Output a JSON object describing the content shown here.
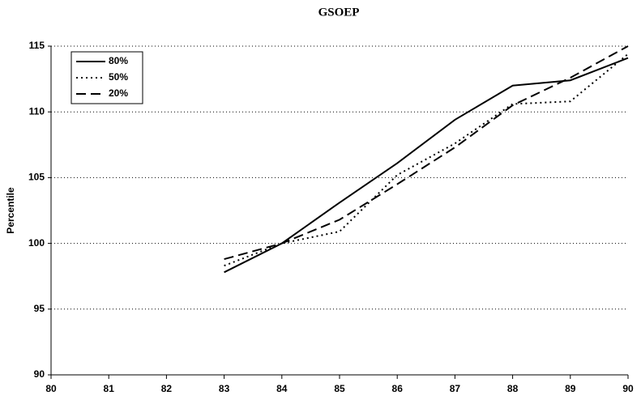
{
  "chart_data": {
    "type": "line",
    "title": "GSOEP",
    "y_label": "Percentile",
    "x": [
      83,
      84,
      85,
      86,
      87,
      88,
      89,
      90
    ],
    "series": [
      {
        "name": "80%",
        "color": "#000000",
        "dash": "solid",
        "values": [
          97.8,
          100,
          103.1,
          106.1,
          109.4,
          112,
          112.4,
          114.1
        ]
      },
      {
        "name": "50%",
        "color": "#000000",
        "dash": "dot",
        "values": [
          98.3,
          100,
          100.9,
          105.2,
          107.6,
          110.6,
          110.8,
          114.4
        ]
      },
      {
        "name": "20%",
        "color": "#000000",
        "dash": "dash",
        "values": [
          98.8,
          100,
          101.8,
          104.5,
          107.3,
          110.5,
          112.6,
          115
        ]
      }
    ],
    "xlim": [
      80,
      90
    ],
    "xticks": [
      80,
      81,
      82,
      83,
      84,
      85,
      86,
      87,
      88,
      89,
      90
    ],
    "ylim": [
      90,
      115
    ],
    "yticks": [
      90,
      95,
      100,
      105,
      110,
      115
    ],
    "grid": true,
    "legend": "top-left"
  }
}
